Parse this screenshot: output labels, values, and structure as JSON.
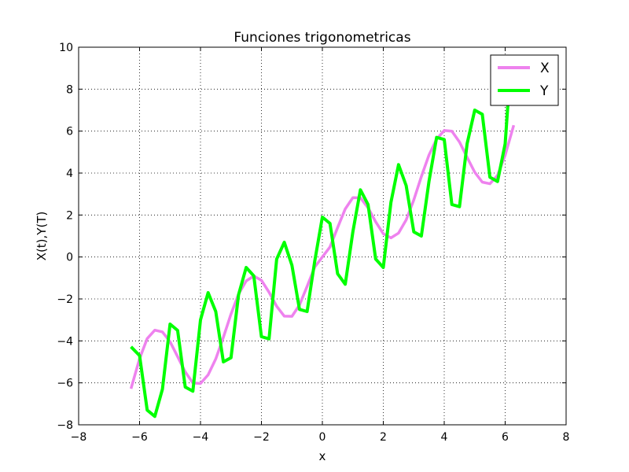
{
  "chart_data": {
    "type": "line",
    "title": "Funciones trigonometricas",
    "xlabel": "x",
    "ylabel": "X(t),Y(T)",
    "xlim": [
      -8,
      8
    ],
    "ylim": [
      -8,
      10
    ],
    "x_ticks": [
      -8,
      -6,
      -4,
      -2,
      0,
      2,
      4,
      6,
      8
    ],
    "y_ticks": [
      -8,
      -6,
      -4,
      -2,
      0,
      2,
      4,
      6,
      8,
      10
    ],
    "x_tick_labels": [
      "−8",
      "−6",
      "−4",
      "−2",
      "0",
      "2",
      "4",
      "6",
      "8"
    ],
    "y_tick_labels": [
      "−8",
      "−6",
      "−4",
      "−2",
      "0",
      "2",
      "4",
      "6",
      "8",
      "10"
    ],
    "grid": true,
    "legend_position": "top-right",
    "series": [
      {
        "name": "X",
        "color": "#ee82ee",
        "x": [
          -6.28,
          -6.0,
          -5.75,
          -5.5,
          -5.25,
          -5.0,
          -4.75,
          -4.5,
          -4.25,
          -4.0,
          -3.75,
          -3.5,
          -3.25,
          -3.0,
          -2.75,
          -2.5,
          -2.25,
          -2.0,
          -1.75,
          -1.5,
          -1.25,
          -1.0,
          -0.75,
          -0.5,
          -0.25,
          0.0,
          0.25,
          0.5,
          0.75,
          1.0,
          1.25,
          1.5,
          1.75,
          2.0,
          2.25,
          2.5,
          2.75,
          3.0,
          3.25,
          3.5,
          3.75,
          4.0,
          4.25,
          4.5,
          4.75,
          5.0,
          5.25,
          5.5,
          5.75,
          6.0,
          6.28
        ],
        "y": [
          -6.28,
          -4.85,
          -3.89,
          -3.49,
          -3.57,
          -4.04,
          -4.75,
          -5.48,
          -6.0,
          -6.03,
          -5.62,
          -4.86,
          -3.83,
          -2.72,
          -1.77,
          -1.14,
          -0.91,
          -1.11,
          -1.68,
          -2.35,
          -2.82,
          -2.83,
          -2.29,
          -1.4,
          -0.48,
          0.0,
          0.48,
          1.4,
          2.29,
          2.83,
          2.82,
          2.35,
          1.68,
          1.11,
          0.91,
          1.14,
          1.77,
          2.72,
          3.83,
          4.86,
          5.62,
          6.03,
          6.0,
          5.48,
          4.75,
          4.04,
          3.57,
          3.49,
          3.89,
          4.85,
          6.28
        ]
      },
      {
        "name": "Y",
        "color": "#00ff00",
        "x": [
          -6.28,
          -6.0,
          -5.75,
          -5.5,
          -5.25,
          -5.0,
          -4.75,
          -4.5,
          -4.25,
          -4.0,
          -3.75,
          -3.5,
          -3.25,
          -3.0,
          -2.75,
          -2.5,
          -2.25,
          -2.0,
          -1.75,
          -1.5,
          -1.25,
          -1.0,
          -0.75,
          -0.5,
          -0.25,
          0.0,
          0.25,
          0.5,
          0.75,
          1.0,
          1.25,
          1.5,
          1.75,
          2.0,
          2.25,
          2.5,
          2.75,
          3.0,
          3.25,
          3.5,
          3.75,
          4.0,
          4.25,
          4.5,
          4.75,
          5.0,
          5.25,
          5.5,
          5.75,
          6.0,
          6.1
        ],
        "y": [
          -4.28,
          -4.7,
          -7.3,
          -7.6,
          -6.3,
          -3.2,
          -3.5,
          -6.2,
          -6.4,
          -3.0,
          -1.7,
          -2.6,
          -5.0,
          -4.8,
          -1.8,
          -0.5,
          -0.9,
          -3.8,
          -3.9,
          -0.1,
          0.7,
          -0.4,
          -2.5,
          -2.6,
          -0.2,
          1.9,
          1.6,
          -0.8,
          -1.3,
          1.2,
          3.2,
          2.5,
          -0.1,
          -0.5,
          2.6,
          4.4,
          3.4,
          1.2,
          1.0,
          3.6,
          5.7,
          5.6,
          2.5,
          2.4,
          5.4,
          7.0,
          6.8,
          3.8,
          3.6,
          5.4,
          7.5
        ]
      }
    ]
  }
}
